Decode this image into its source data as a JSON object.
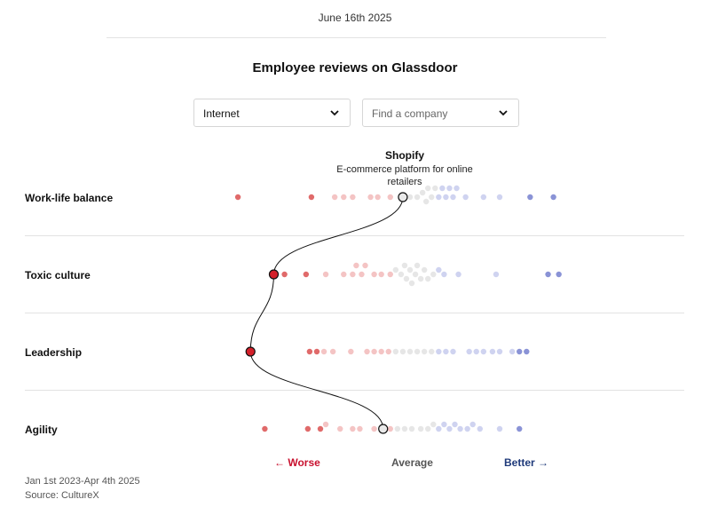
{
  "header": {
    "date": "June 16th 2025",
    "title": "Employee reviews on Glassdoor"
  },
  "filters": {
    "industry_value": "Internet",
    "company_placeholder": "Find a company"
  },
  "highlight": {
    "company": "Shopify",
    "description": "E-commerce platform for online retailers"
  },
  "chart_data": {
    "type": "scatter",
    "title": "Employee reviews on Glassdoor",
    "xlabel": "",
    "ylabel": "",
    "scale": "relative score (-1 = worst, 0 = average, 1 = best)",
    "xlim": [
      -1,
      1
    ],
    "highlight_company": "Shopify",
    "categories": [
      "Work-life balance",
      "Toxic culture",
      "Leadership",
      "Agility"
    ],
    "series": [
      {
        "category": "Work-life balance",
        "highlight": -0.04,
        "values": [
          -0.96,
          -0.55,
          -0.42,
          -0.37,
          -0.32,
          -0.22,
          -0.18,
          -0.11,
          0.0,
          0.04,
          0.07,
          0.09,
          0.1,
          0.12,
          0.14,
          0.16,
          0.18,
          0.2,
          0.22,
          0.24,
          0.26,
          0.31,
          0.41,
          0.5,
          0.67,
          0.8
        ]
      },
      {
        "category": "Toxic culture",
        "highlight": -0.76,
        "values": [
          -0.7,
          -0.58,
          -0.47,
          -0.37,
          -0.32,
          -0.3,
          -0.27,
          -0.25,
          -0.2,
          -0.16,
          -0.11,
          -0.08,
          -0.05,
          -0.03,
          -0.02,
          0.0,
          0.01,
          0.03,
          0.04,
          0.06,
          0.08,
          0.1,
          0.13,
          0.16,
          0.19,
          0.27,
          0.48,
          0.77,
          0.83
        ]
      },
      {
        "category": "Leadership",
        "highlight": -0.89,
        "values": [
          -0.56,
          -0.52,
          -0.48,
          -0.43,
          -0.33,
          -0.24,
          -0.2,
          -0.16,
          -0.12,
          -0.08,
          -0.04,
          0.0,
          0.04,
          0.08,
          0.12,
          0.16,
          0.2,
          0.24,
          0.33,
          0.37,
          0.41,
          0.46,
          0.5,
          0.57,
          0.61,
          0.65
        ]
      },
      {
        "category": "Agility",
        "highlight": -0.15,
        "values": [
          -0.81,
          -0.57,
          -0.5,
          -0.47,
          -0.39,
          -0.32,
          -0.28,
          -0.2,
          -0.15,
          -0.11,
          -0.07,
          -0.03,
          0.01,
          0.06,
          0.1,
          0.13,
          0.16,
          0.19,
          0.22,
          0.25,
          0.28,
          0.32,
          0.35,
          0.39,
          0.5,
          0.61
        ]
      }
    ],
    "legend": {
      "worse": "Worse",
      "average": "Average",
      "better": "Better"
    },
    "colors": {
      "worse_strong": "#e06a6a",
      "worse_light": "#f4c4c4",
      "neutral": "#e6e6e6",
      "better_light": "#cfd3f0",
      "better_strong": "#8a93d6",
      "highlight_bad": "#d4202a"
    }
  },
  "legend_text": {
    "worse": "← Worse",
    "average": "Average",
    "better": "Better →"
  },
  "footer": {
    "period": "Jan 1st 2023-Apr 4th 2025",
    "source": "Source: CultureX"
  }
}
